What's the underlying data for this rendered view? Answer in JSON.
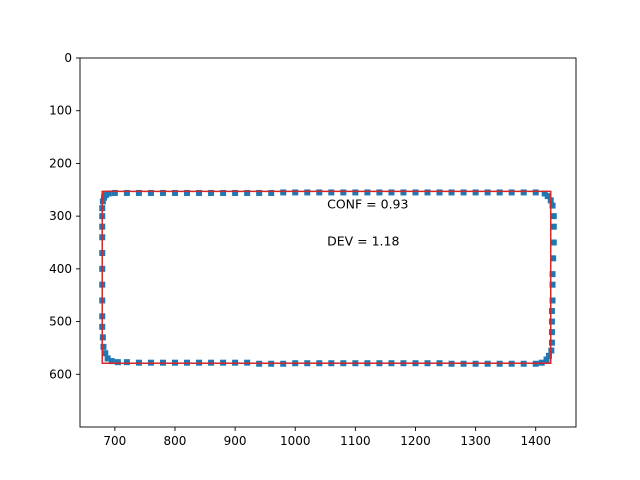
{
  "chart_data": {
    "type": "scatter",
    "title": "",
    "xlabel": "",
    "ylabel": "",
    "xlim": [
      642,
      1467
    ],
    "ylim": [
      700,
      0
    ],
    "y_inverted": true,
    "grid": false,
    "xticks": [
      700,
      800,
      900,
      1000,
      1100,
      1200,
      1300,
      1400
    ],
    "yticks": [
      0,
      100,
      200,
      300,
      400,
      500,
      600
    ],
    "marker_color": "#1f77b4",
    "box_color": "#d62728",
    "bounding_box": {
      "x_min": 679,
      "y_min": 253,
      "x_max": 1425,
      "y_max": 579
    },
    "annotations": [
      {
        "text": "CONF = 0.93",
        "x": 1053,
        "y": 278
      },
      {
        "text": "DEV = 1.18",
        "x": 1053,
        "y": 348
      }
    ],
    "series": [
      {
        "x": [
          690,
          700,
          720,
          740,
          760,
          780,
          800,
          820,
          840,
          860,
          880,
          900,
          920,
          940,
          960,
          980,
          1000,
          1020,
          1040,
          1060,
          1080,
          1100,
          1120,
          1140,
          1160,
          1180,
          1200,
          1220,
          1240,
          1260,
          1280,
          1300,
          1320,
          1340,
          1360,
          1380,
          1400,
          1415,
          1420,
          1425,
          1428,
          1430,
          1430,
          1430,
          1429,
          1428,
          1428,
          1428,
          1427,
          1427,
          1427,
          1427,
          1426,
          1422,
          1418,
          1410,
          1400,
          1380,
          1360,
          1340,
          1320,
          1300,
          1280,
          1260,
          1240,
          1220,
          1200,
          1180,
          1160,
          1140,
          1120,
          1100,
          1080,
          1060,
          1040,
          1020,
          1000,
          980,
          960,
          940,
          920,
          900,
          880,
          860,
          840,
          820,
          800,
          780,
          760,
          740,
          720,
          705,
          695,
          688,
          684,
          681,
          680,
          679,
          679,
          679,
          679,
          679,
          679,
          679,
          679,
          679,
          679,
          680,
          682,
          685
        ],
        "y": [
          257,
          256,
          256,
          256,
          256,
          256,
          256,
          256,
          256,
          256,
          256,
          256,
          256,
          256,
          256,
          255,
          255,
          255,
          255,
          255,
          255,
          255,
          255,
          255,
          255,
          255,
          255,
          255,
          255,
          255,
          255,
          255,
          255,
          255,
          255,
          255,
          255,
          257,
          262,
          270,
          280,
          300,
          320,
          350,
          380,
          410,
          430,
          460,
          480,
          500,
          520,
          540,
          555,
          565,
          572,
          578,
          580,
          580,
          580,
          580,
          580,
          580,
          580,
          580,
          579,
          579,
          579,
          579,
          579,
          579,
          579,
          579,
          579,
          579,
          579,
          579,
          579,
          580,
          580,
          580,
          578,
          578,
          578,
          578,
          578,
          578,
          578,
          578,
          578,
          578,
          577,
          577,
          575,
          570,
          560,
          548,
          530,
          510,
          490,
          460,
          430,
          400,
          370,
          340,
          320,
          300,
          285,
          272,
          265,
          260
        ]
      }
    ]
  }
}
